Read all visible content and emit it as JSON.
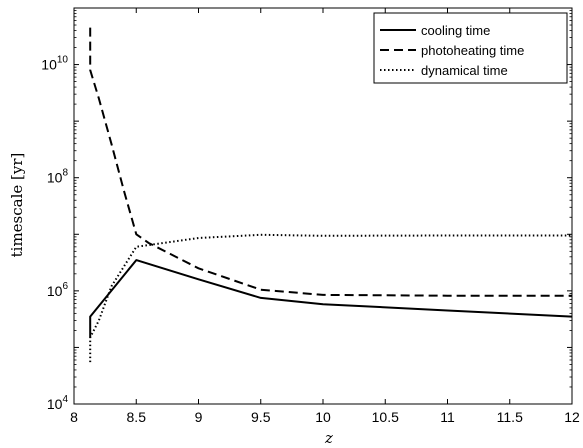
{
  "chart_data": {
    "type": "line",
    "title": "",
    "xlabel": "z",
    "ylabel": "timescale [yr]",
    "xlim": [
      8,
      12
    ],
    "ylim": [
      10000,
      100000000000
    ],
    "yscale": "log",
    "grid": false,
    "legend_position": "top-right",
    "x_ticks": [
      8,
      8.5,
      9,
      9.5,
      10,
      10.5,
      11,
      11.5,
      12
    ],
    "x_tick_labels": [
      "8",
      "8.5",
      "9",
      "9.5",
      "10",
      "10.5",
      "11",
      "11.5",
      "12"
    ],
    "y_ticks": [
      {
        "value": 10000,
        "base": "10",
        "exp": "4"
      },
      {
        "value": 1000000,
        "base": "10",
        "exp": "6"
      },
      {
        "value": 100000000,
        "base": "10",
        "exp": "8"
      },
      {
        "value": 10000000000,
        "base": "10",
        "exp": "10"
      }
    ],
    "series": [
      {
        "name": "cooling time",
        "style": "solid",
        "color": "#000000",
        "x": [
          8.13,
          8.13,
          8.5,
          9.0,
          9.5,
          10.0,
          11.0,
          12.0
        ],
        "y": [
          150000,
          350000,
          3500000,
          1600000,
          750000,
          580000,
          450000,
          350000
        ]
      },
      {
        "name": "photoheating time",
        "style": "dashed",
        "color": "#000000",
        "x": [
          8.13,
          8.13,
          8.2,
          8.3,
          8.4,
          8.5,
          8.6,
          9.0,
          9.5,
          10.0,
          11.0,
          12.0
        ],
        "y": [
          45000000000,
          8000000000,
          2500000000,
          400000000,
          60000000,
          10000000,
          7000000,
          2500000,
          1050000,
          850000,
          820000,
          820000
        ]
      },
      {
        "name": "dynamical time",
        "style": "dotted",
        "color": "#000000",
        "x": [
          8.13,
          8.13,
          8.2,
          8.3,
          8.5,
          9.0,
          9.5,
          10.0,
          11.0,
          12.0
        ],
        "y": [
          55000,
          150000,
          300000,
          1200000,
          6000000,
          8600000,
          9800000,
          9400000,
          9500000,
          9500000
        ]
      }
    ]
  }
}
